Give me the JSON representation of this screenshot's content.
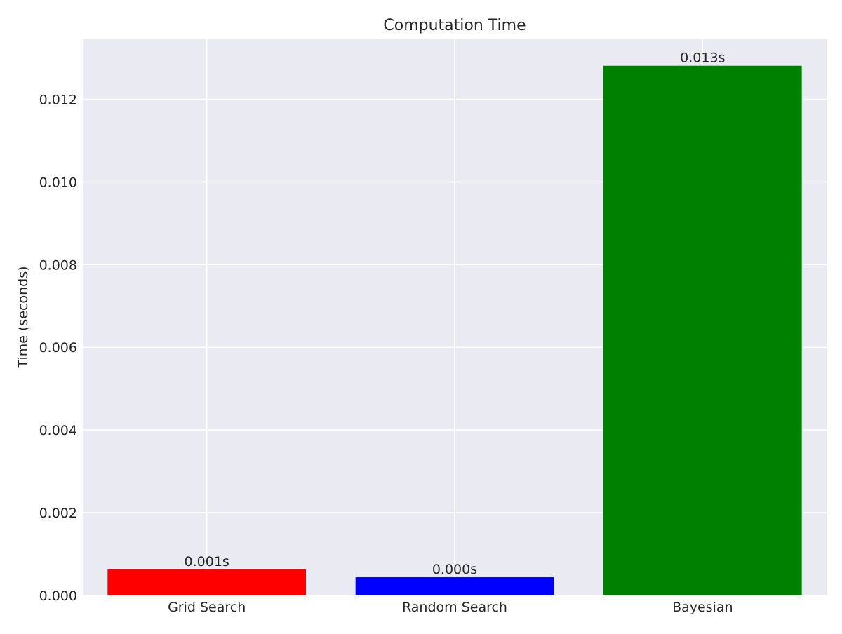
{
  "chart_data": {
    "type": "bar",
    "title": "Computation Time",
    "xlabel": "",
    "ylabel": "Time (seconds)",
    "categories": [
      "Grid Search",
      "Random Search",
      "Bayesian"
    ],
    "values": [
      0.00063,
      0.00044,
      0.01281
    ],
    "data_labels": [
      "0.001s",
      "0.000s",
      "0.013s"
    ],
    "colors": [
      "#ff0000",
      "#0000ff",
      "#008000"
    ],
    "ylim": [
      0,
      0.01345
    ],
    "yticks": [
      0.0,
      0.002,
      0.004,
      0.006,
      0.008,
      0.01,
      0.012
    ],
    "ytick_labels": [
      "0.000",
      "0.002",
      "0.004",
      "0.006",
      "0.008",
      "0.010",
      "0.012"
    ],
    "grid": true,
    "legend": "none"
  }
}
